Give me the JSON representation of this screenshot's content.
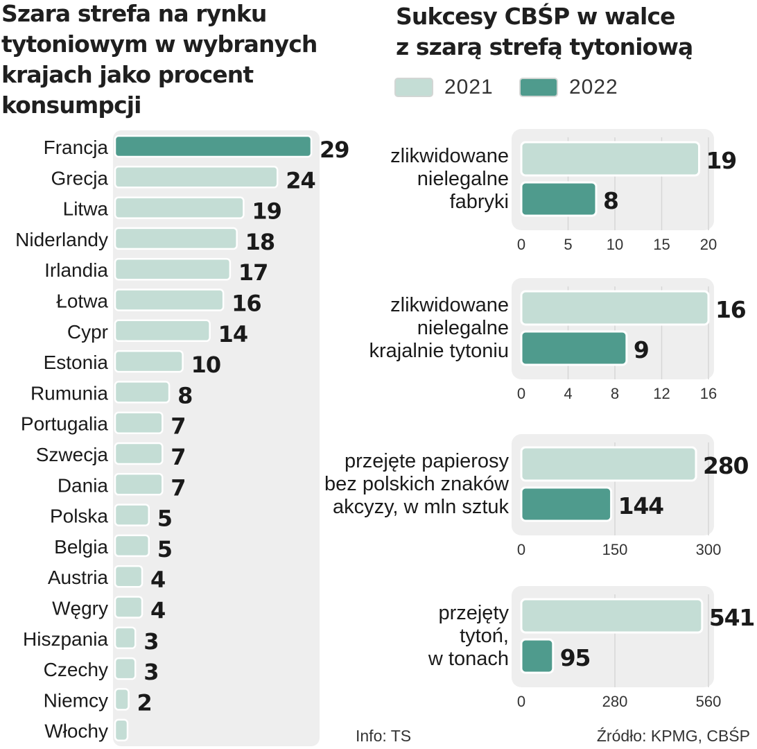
{
  "colors": {
    "y2021": "#c4ddd5",
    "y2022": "#4f9b8d",
    "bar_border": "#ffffff",
    "panel_bg": "#eeeeee",
    "gridline": "#d6d6d6",
    "text": "#1a1a1a"
  },
  "left_title": "Szara strefa na rynku\ntytoniowym w wybranych\nkrajach jako procent\nkonsumpcji",
  "right_title": "Sukcesy CBŚP w walce\nz szarą strefą tytoniową",
  "legend": [
    {
      "label": "2021",
      "color": "#c4ddd5"
    },
    {
      "label": "2022",
      "color": "#4f9b8d"
    }
  ],
  "footer": {
    "info": "Info: TS",
    "source": "Źródło: KPMG, CBŚP"
  },
  "chart_data": [
    {
      "type": "bar",
      "orientation": "horizontal",
      "title": "Szara strefa na rynku tytoniowym w wybranych krajach jako procent konsumpcji",
      "categories": [
        "Francja",
        "Grecja",
        "Litwa",
        "Niderlandy",
        "Irlandia",
        "Łotwa",
        "Cypr",
        "Estonia",
        "Rumunia",
        "Portugalia",
        "Szwecja",
        "Dania",
        "Polska",
        "Belgia",
        "Austria",
        "Węgry",
        "Hiszpania",
        "Czechy",
        "Niemcy",
        "Włochy"
      ],
      "values": [
        29,
        24,
        19,
        18,
        17,
        16,
        14,
        10,
        8,
        7,
        7,
        7,
        5,
        5,
        4,
        4,
        3,
        3,
        2,
        1
      ],
      "labels": [
        "29",
        "24",
        "19",
        "18",
        "17",
        "16",
        "14",
        "10",
        "8",
        "7",
        "7",
        "7",
        "5",
        "5",
        "4",
        "4",
        "3",
        "3",
        "2",
        ""
      ],
      "highlight": "Francja",
      "xlim": [
        0,
        29
      ]
    },
    {
      "type": "bar",
      "orientation": "horizontal",
      "title": "Sukcesy CBŚP w walce z szarą strefą tytoniową",
      "series_names": [
        "2021",
        "2022"
      ],
      "panels": [
        {
          "label": "zlikwidowane\nnielegalne\nfabryki",
          "values": [
            19,
            8
          ],
          "xlim": [
            0,
            20
          ],
          "ticks": [
            0,
            5,
            10,
            15,
            20
          ]
        },
        {
          "label": "zlikwidowane\nnielegalne\nkrajalnie tytoniu",
          "values": [
            16,
            9
          ],
          "xlim": [
            0,
            16
          ],
          "ticks": [
            0,
            4,
            8,
            12,
            16
          ]
        },
        {
          "label": "przejęte papierosy\nbez polskich znaków\nakcyzy, w mln sztuk",
          "values": [
            280,
            144
          ],
          "xlim": [
            0,
            300
          ],
          "ticks": [
            0,
            150,
            300
          ]
        },
        {
          "label": "przejęty\ntytoń,\nw tonach",
          "values": [
            541,
            95
          ],
          "xlim": [
            0,
            560
          ],
          "ticks": [
            0,
            280,
            560
          ]
        }
      ]
    }
  ]
}
